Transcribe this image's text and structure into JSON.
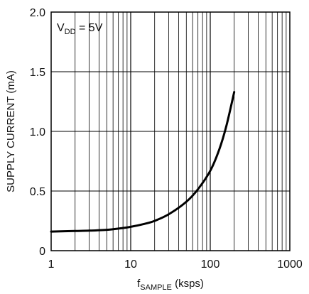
{
  "chart_data": {
    "type": "line",
    "title": "",
    "xlabel": {
      "main": "f",
      "sub": "SAMPLE",
      "suffix": " (ksps)"
    },
    "ylabel": "SUPPLY CURRENT (mA)",
    "annotation": {
      "main": "V",
      "sub": "DD",
      "suffix": " = 5V"
    },
    "xscale": "log",
    "xlim": [
      1,
      1000
    ],
    "ylim": [
      0,
      2.0
    ],
    "x_ticks": [
      1,
      10,
      100,
      1000
    ],
    "x_tick_labels": [
      "1",
      "10",
      "100",
      "1000"
    ],
    "y_ticks": [
      0,
      0.5,
      1.0,
      1.5,
      2.0
    ],
    "y_tick_labels": [
      "0",
      "0.5",
      "1.0",
      "1.5",
      "2.0"
    ],
    "grid": true,
    "line_color": "#000000",
    "series": [
      {
        "x": [
          1,
          2,
          3,
          5,
          7,
          10,
          15,
          20,
          30,
          50,
          70,
          100,
          130,
          160,
          200
        ],
        "y": [
          0.16,
          0.165,
          0.168,
          0.175,
          0.185,
          0.2,
          0.225,
          0.25,
          0.305,
          0.41,
          0.515,
          0.67,
          0.85,
          1.05,
          1.33
        ]
      }
    ]
  }
}
